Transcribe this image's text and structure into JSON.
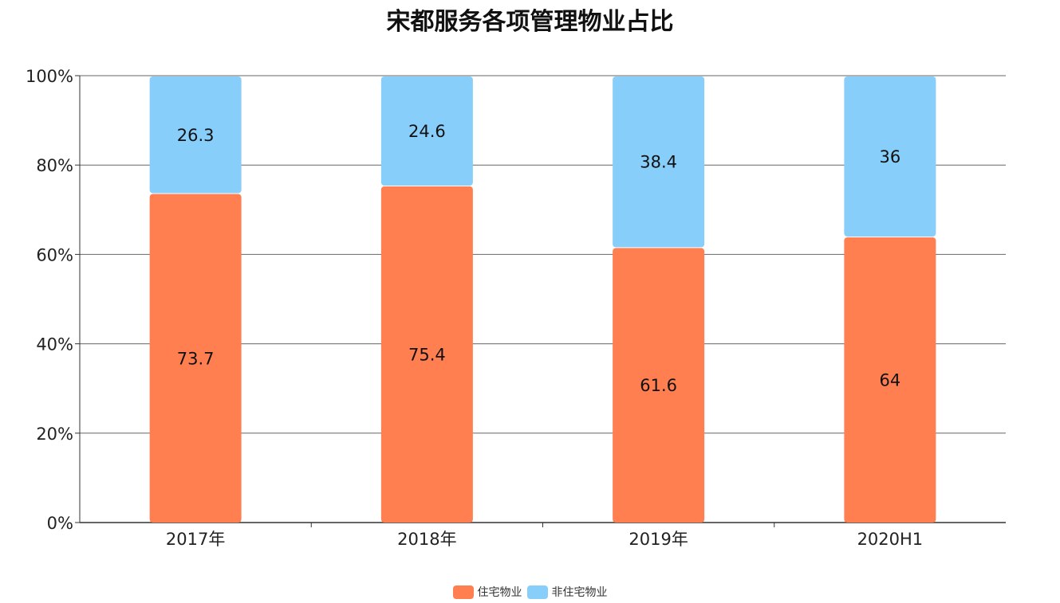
{
  "colors": {
    "residential": "#FF7F50",
    "non_residential": "#87CEFA",
    "grid": "#666666",
    "axis": "#333333"
  },
  "chart_data": {
    "type": "bar",
    "stacked": true,
    "title": "宋都服务各项管理物业占比",
    "categories": [
      "2017年",
      "2018年",
      "2019年",
      "2020H1"
    ],
    "series": [
      {
        "name": "住宅物业",
        "values": [
          73.7,
          75.4,
          61.6,
          64
        ],
        "color": "#FF7F50"
      },
      {
        "name": "非住宅物业",
        "values": [
          26.3,
          24.6,
          38.4,
          36
        ],
        "color": "#87CEFA"
      }
    ],
    "ylim": [
      0,
      100
    ],
    "yticks": [
      "0%",
      "20%",
      "40%",
      "60%",
      "80%",
      "100%"
    ],
    "grid": true,
    "legend_position": "bottom-center"
  }
}
